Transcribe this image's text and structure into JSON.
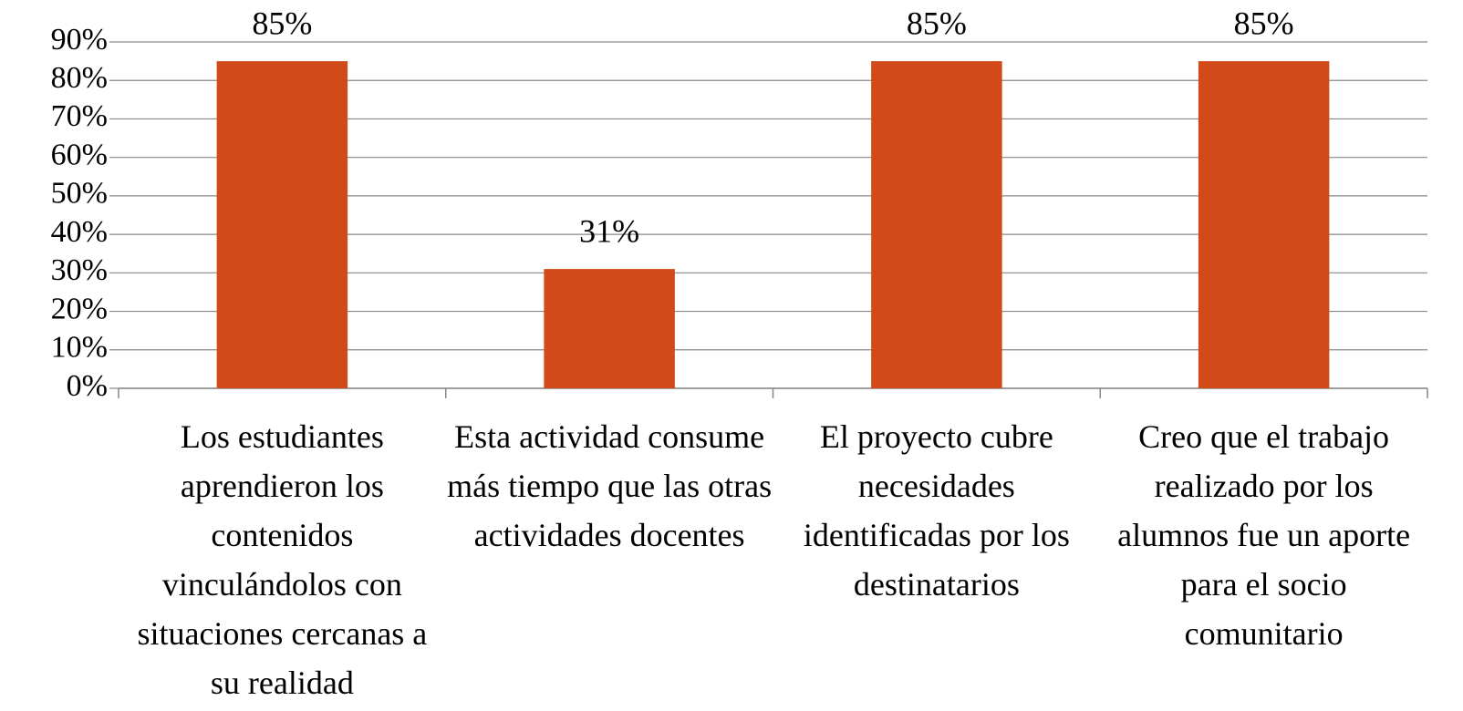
{
  "chart_data": {
    "type": "bar",
    "categories": [
      "Los estudiantes aprendieron los contenidos vinculándolos con situaciones cercanas a su realidad",
      "Esta actividad consume más tiempo que las otras actividades docentes",
      "El proyecto cubre necesidades identificadas por los destinatarios",
      "Creo que el trabajo realizado por los alumnos  fue un aporte para el socio comunitario"
    ],
    "values": [
      85,
      31,
      85,
      85
    ],
    "value_labels": [
      "85%",
      "31%",
      "85%",
      "85%"
    ],
    "color": "#d24a1a",
    "ylim": [
      0,
      90
    ],
    "yticks": [
      {
        "value": 0,
        "label": "0%"
      },
      {
        "value": 10,
        "label": "10%"
      },
      {
        "value": 20,
        "label": "20%"
      },
      {
        "value": 30,
        "label": "30%"
      },
      {
        "value": 40,
        "label": "40%"
      },
      {
        "value": 50,
        "label": "50%"
      },
      {
        "value": 60,
        "label": "60%"
      },
      {
        "value": 70,
        "label": "70%"
      },
      {
        "value": 80,
        "label": "80%"
      },
      {
        "value": 90,
        "label": "90%"
      }
    ],
    "grid": true
  }
}
